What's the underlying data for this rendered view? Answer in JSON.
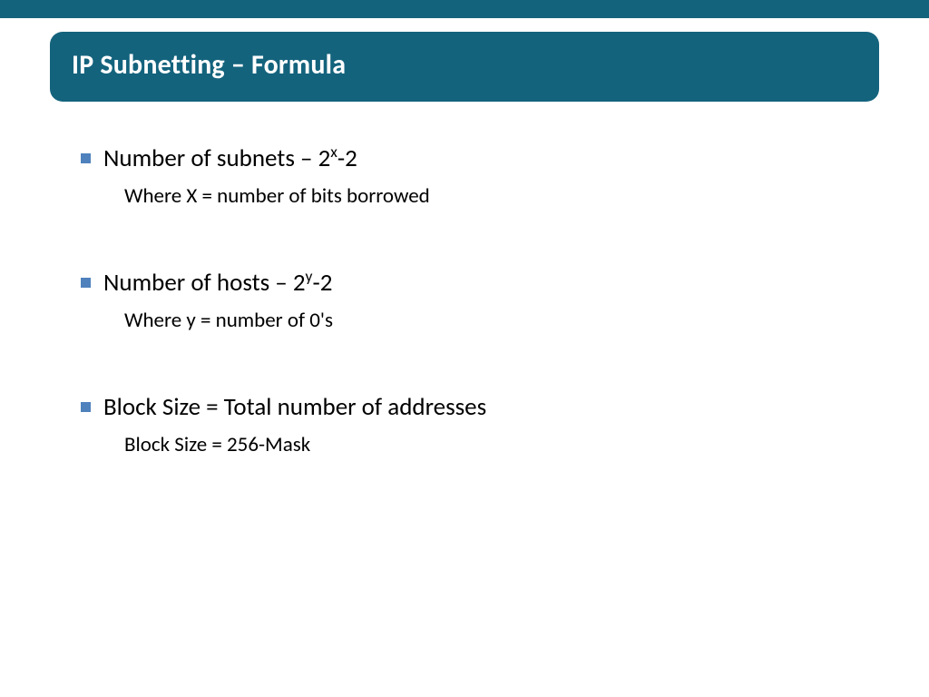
{
  "colors": {
    "header_bg": "#14637d",
    "bullet_color": "#4f81bd",
    "text_color": "#000000",
    "title_color": "#ffffff",
    "page_bg": "#ffffff"
  },
  "typography": {
    "title_fontsize": 30,
    "bullet_fontsize": 27,
    "sub_fontsize": 23,
    "font_family": "Calibri"
  },
  "title": "IP Subnetting – Formula",
  "items": [
    {
      "main_prefix": "Number of subnets – 2",
      "main_super": "x",
      "main_suffix": "-2",
      "sub": "Where X = number of bits borrowed"
    },
    {
      "main_prefix": "Number of hosts – 2",
      "main_super": "y",
      "main_suffix": "-2",
      "sub": "Where y = number of 0's"
    },
    {
      "main_prefix": "Block Size = Total number of addresses",
      "main_super": "",
      "main_suffix": "",
      "sub": "Block Size = 256-Mask"
    }
  ]
}
